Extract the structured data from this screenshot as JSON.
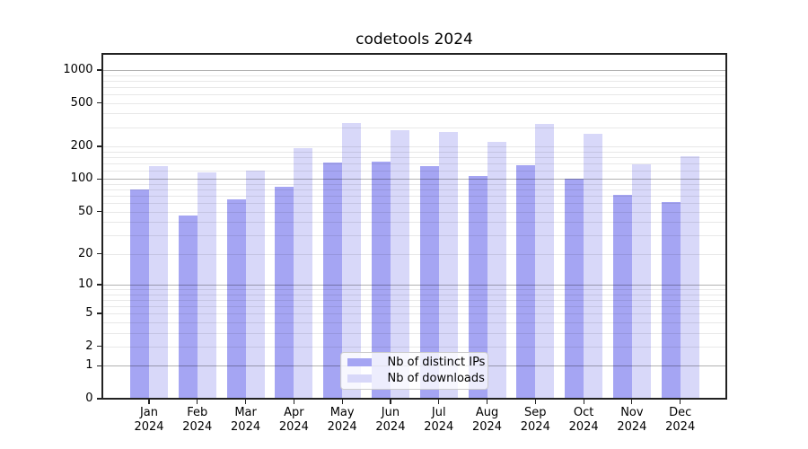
{
  "chart_data": {
    "type": "bar",
    "title": "codetools 2024",
    "xlabel": "",
    "ylabel": "",
    "x_year": "2024",
    "categories": [
      "Jan",
      "Feb",
      "Mar",
      "Apr",
      "May",
      "Jun",
      "Jul",
      "Aug",
      "Sep",
      "Oct",
      "Nov",
      "Dec"
    ],
    "series": [
      {
        "name": "Nb of distinct IPs",
        "color": "#a5a5f3",
        "values": [
          81,
          46,
          65,
          85,
          141,
          144,
          133,
          106,
          134,
          100,
          72,
          61
        ]
      },
      {
        "name": "Nb of downloads",
        "color": "#d8d8f9",
        "values": [
          133,
          115,
          119,
          193,
          326,
          283,
          270,
          221,
          323,
          262,
          137,
          161
        ]
      }
    ],
    "yscale": "log1p",
    "ylim": [
      0,
      1440
    ],
    "yticks": [
      0,
      1,
      2,
      5,
      10,
      20,
      50,
      100,
      200,
      500,
      1000
    ],
    "grid": {
      "major": [
        1,
        10,
        100,
        1000
      ],
      "minor": [
        2,
        3,
        4,
        5,
        6,
        7,
        8,
        9,
        20,
        30,
        40,
        50,
        60,
        70,
        80,
        90,
        120,
        140,
        160,
        180,
        200,
        300,
        400,
        500,
        600,
        700,
        800,
        900
      ]
    },
    "legend_position": "lower center inside"
  }
}
